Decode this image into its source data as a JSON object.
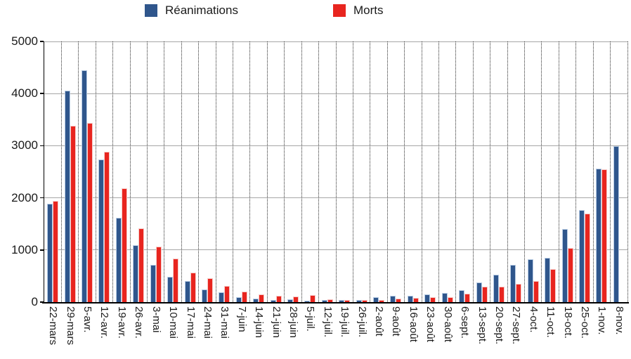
{
  "chart_data": {
    "type": "bar",
    "title": "",
    "xlabel": "",
    "ylabel": "",
    "legend_position": "top",
    "grid": {
      "horizontal": "solid-gray",
      "vertical": "dotted-black"
    },
    "ylim": [
      0,
      5000
    ],
    "yticks": [
      "0",
      "1000",
      "2000",
      "3000",
      "4000",
      "5000"
    ],
    "categories": [
      "22-mars",
      "29-mars",
      "5-avr.",
      "12-avr.",
      "19-avr.",
      "26-avr.",
      "3-mai",
      "10-mai",
      "17-mai",
      "24-mai",
      "31-mai",
      "7-juin",
      "14-juin",
      "21-juin",
      "28-juin",
      "5-juil.",
      "12-juil.",
      "19-juil.",
      "26-juil.",
      "2-août",
      "9-août",
      "16-août",
      "23-août",
      "30-août",
      "6-sept.",
      "13-sept.",
      "20-sept.",
      "27-sept.",
      "4-oct.",
      "11-oct.",
      "18-oct.",
      "25-oct.",
      "1-nov.",
      "8-nov."
    ],
    "series": [
      {
        "name": "Réanimations",
        "color": "#2F568C",
        "border_color": "#B8CCE4",
        "values": [
          1890,
          4050,
          4450,
          2730,
          1620,
          1090,
          710,
          490,
          400,
          240,
          185,
          95,
          70,
          45,
          50,
          25,
          45,
          45,
          40,
          90,
          120,
          120,
          145,
          175,
          235,
          375,
          520,
          710,
          820,
          850,
          1400,
          1770,
          2560,
          2990
        ]
      },
      {
        "name": "Morts",
        "color": "#E8251F",
        "border_color": "#F6CBC8",
        "values": [
          1945,
          3380,
          3430,
          2880,
          2180,
          1420,
          1070,
          840,
          560,
          460,
          310,
          200,
          145,
          115,
          110,
          130,
          55,
          45,
          40,
          40,
          70,
          80,
          90,
          100,
          160,
          295,
          295,
          350,
          410,
          630,
          1040,
          1700,
          2545,
          0
        ]
      }
    ]
  },
  "colors": {
    "background": "#FFFFFF",
    "axis": "#000000",
    "gridline_horizontal": "#A6A6A6",
    "gridline_vertical": "#2B2B2B",
    "text": "#1A1A1A"
  }
}
